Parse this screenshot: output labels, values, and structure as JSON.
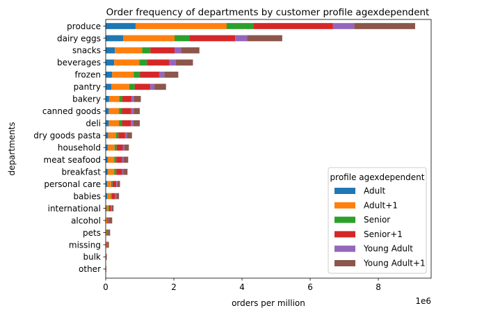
{
  "chart_data": {
    "type": "bar",
    "orientation": "horizontal",
    "stacked": true,
    "title": "Order frequency of departments by customer profile agexdependent",
    "xlabel": "orders per million",
    "ylabel": "departments",
    "x_offset_label": "1e6",
    "xlim": [
      0,
      9.55
    ],
    "x_ticks": [
      0,
      2,
      4,
      6,
      8
    ],
    "x_tick_labels": [
      "0",
      "2",
      "4",
      "6",
      "8"
    ],
    "grid": false,
    "legend": {
      "title": "profile agexdependent",
      "placement": "lower-right"
    },
    "categories": [
      "produce",
      "dairy eggs",
      "snacks",
      "beverages",
      "frozen",
      "pantry",
      "bakery",
      "canned goods",
      "deli",
      "dry goods pasta",
      "household",
      "meat seafood",
      "breakfast",
      "personal care",
      "babies",
      "international",
      "alcohol",
      "pets",
      "missing",
      "bulk",
      "other"
    ],
    "series": [
      {
        "name": "Adult",
        "color": "#1f77b4",
        "values": [
          0.88,
          0.51,
          0.27,
          0.25,
          0.19,
          0.17,
          0.1,
          0.09,
          0.09,
          0.07,
          0.06,
          0.06,
          0.06,
          0.04,
          0.04,
          0.02,
          0.01,
          0.01,
          0.005,
          0.003,
          0.002
        ]
      },
      {
        "name": "Adult+1",
        "color": "#ff7f0e",
        "values": [
          2.67,
          1.51,
          0.8,
          0.74,
          0.63,
          0.52,
          0.3,
          0.3,
          0.3,
          0.23,
          0.2,
          0.19,
          0.19,
          0.12,
          0.11,
          0.06,
          0.03,
          0.02,
          0.015,
          0.01,
          0.006
        ]
      },
      {
        "name": "Senior",
        "color": "#2ca02c",
        "values": [
          0.78,
          0.44,
          0.24,
          0.22,
          0.19,
          0.16,
          0.09,
          0.09,
          0.09,
          0.07,
          0.06,
          0.06,
          0.06,
          0.04,
          0.03,
          0.02,
          0.01,
          0.01,
          0.005,
          0.003,
          0.002
        ]
      },
      {
        "name": "Senior+1",
        "color": "#d62728",
        "values": [
          2.34,
          1.34,
          0.71,
          0.66,
          0.56,
          0.46,
          0.27,
          0.27,
          0.26,
          0.2,
          0.18,
          0.17,
          0.17,
          0.11,
          0.1,
          0.06,
          0.03,
          0.02,
          0.015,
          0.009,
          0.005
        ]
      },
      {
        "name": "Young Adult",
        "color": "#9467bd",
        "values": [
          0.62,
          0.35,
          0.19,
          0.19,
          0.15,
          0.12,
          0.07,
          0.07,
          0.07,
          0.05,
          0.05,
          0.05,
          0.04,
          0.03,
          0.03,
          0.02,
          0.01,
          0.01,
          0.004,
          0.002,
          0.001
        ]
      },
      {
        "name": "Young Adult+1",
        "color": "#8c564b",
        "values": [
          1.79,
          1.03,
          0.54,
          0.5,
          0.41,
          0.34,
          0.2,
          0.18,
          0.19,
          0.15,
          0.13,
          0.13,
          0.12,
          0.08,
          0.08,
          0.05,
          0.1,
          0.06,
          0.05,
          0.008,
          0.004
        ]
      }
    ]
  }
}
